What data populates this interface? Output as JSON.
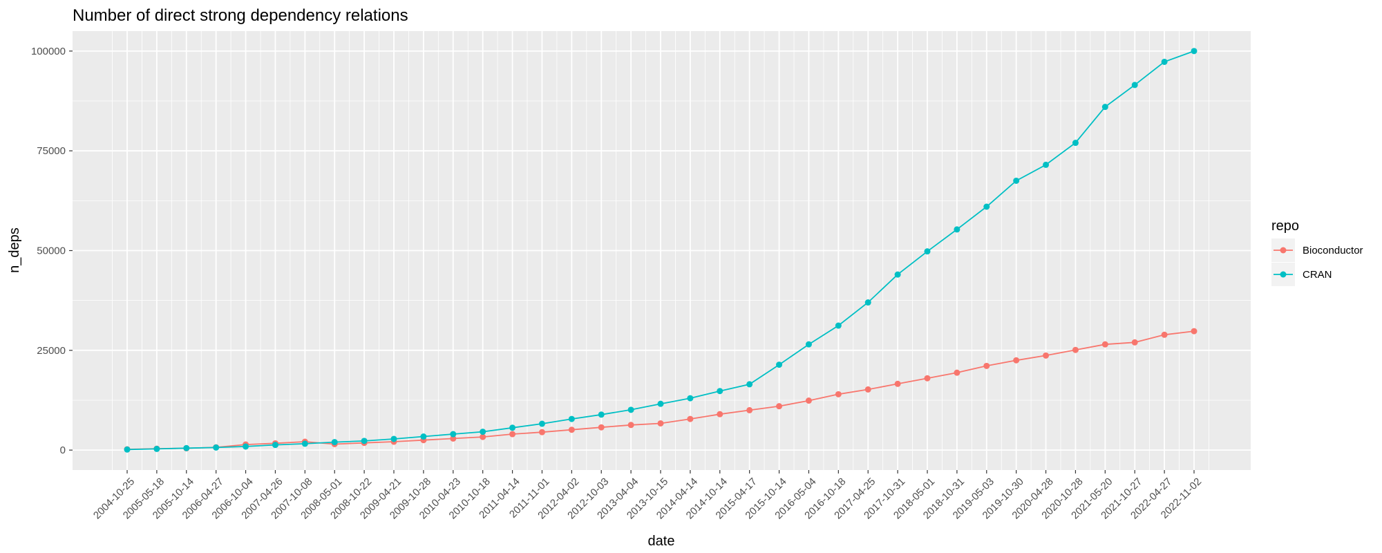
{
  "chart_data": {
    "type": "line",
    "title": "Number of direct strong dependency relations",
    "xlabel": "date",
    "ylabel": "n_deps",
    "x": [
      "2004-10-25",
      "2005-05-18",
      "2005-10-14",
      "2006-04-27",
      "2006-10-04",
      "2007-04-26",
      "2007-10-08",
      "2008-05-01",
      "2008-10-22",
      "2009-04-21",
      "2009-10-28",
      "2010-04-23",
      "2010-10-18",
      "2011-04-14",
      "2011-11-01",
      "2012-04-02",
      "2012-10-03",
      "2013-04-04",
      "2013-10-15",
      "2014-04-14",
      "2014-10-14",
      "2015-04-17",
      "2015-10-14",
      "2016-05-04",
      "2016-10-18",
      "2017-04-25",
      "2017-10-31",
      "2018-05-01",
      "2018-10-31",
      "2019-05-03",
      "2019-10-30",
      "2020-04-28",
      "2020-10-28",
      "2021-05-20",
      "2021-10-27",
      "2022-04-27",
      "2022-11-02"
    ],
    "yticks": [
      0,
      25000,
      50000,
      75000,
      100000
    ],
    "ylim": [
      -5000,
      105000
    ],
    "grid": true,
    "legend": {
      "title": "repo",
      "position": "right"
    },
    "series": [
      {
        "name": "Bioconductor",
        "color": "#F8766D",
        "values": [
          200,
          350,
          450,
          700,
          1400,
          1700,
          2100,
          1500,
          1800,
          2100,
          2500,
          2900,
          3300,
          4000,
          4500,
          5100,
          5700,
          6300,
          6700,
          7800,
          9000,
          10000,
          11000,
          12400,
          14000,
          15200,
          16600,
          18000,
          19400,
          21100,
          22500,
          23700,
          25100,
          26500,
          27000,
          28900,
          29800
        ]
      },
      {
        "name": "CRAN",
        "color": "#00BFC4",
        "values": [
          150,
          300,
          500,
          650,
          900,
          1300,
          1600,
          2000,
          2300,
          2800,
          3400,
          4000,
          4600,
          5600,
          6600,
          7800,
          8900,
          10100,
          11600,
          13000,
          14800,
          16500,
          21400,
          26500,
          31200,
          37000,
          44000,
          49800,
          55300,
          61000,
          67500,
          71500,
          77000,
          86000,
          91500,
          97300,
          100000
        ]
      }
    ]
  }
}
